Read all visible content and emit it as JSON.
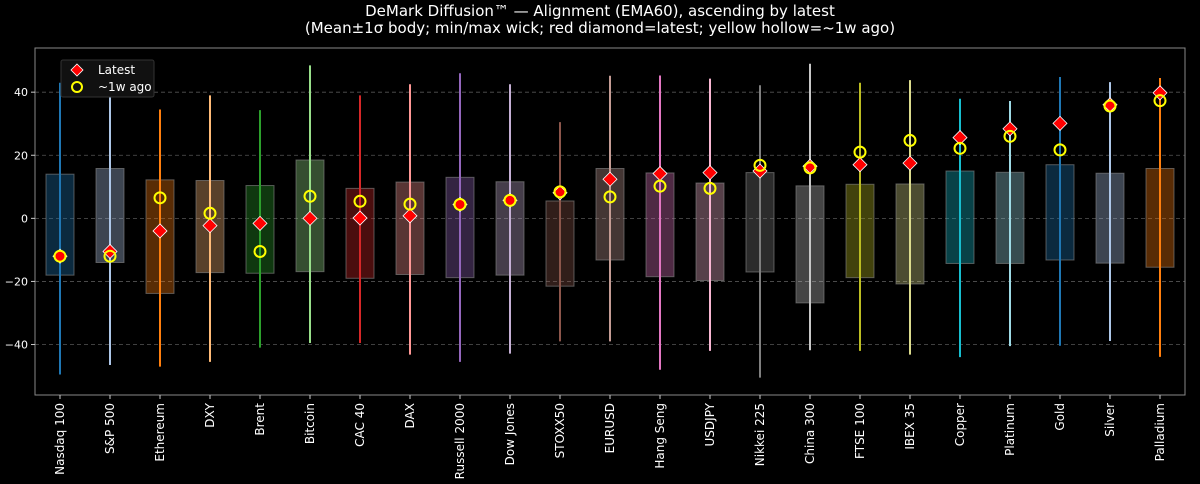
{
  "chart_data": {
    "type": "box-range",
    "title": "DeMark Diffusion™ — Alignment (EMA60), ascending by latest",
    "subtitle": "(Mean±1σ body; min/max wick; red diamond=latest; yellow hollow=~1w ago)",
    "xlabel": "",
    "ylabel": "",
    "ylim": [
      -56,
      54
    ],
    "yticks": [
      -40,
      -20,
      0,
      20,
      40
    ],
    "grid": true,
    "legend": {
      "placement": "top-left",
      "entries": [
        "Latest",
        "~1w ago"
      ]
    },
    "marker_colors": {
      "latest": "#ff0000",
      "week_ago": "#ffff00"
    },
    "categories": [
      "Nasdaq 100",
      "S&P 500",
      "Ethereum",
      "DXY",
      "Brent",
      "Bitcoin",
      "CAC 40",
      "DAX",
      "Russell 2000",
      "Dow Jones",
      "STOXX50",
      "EURUSD",
      "Hang Seng",
      "USDJPY",
      "Nikkei 225",
      "China 300",
      "FTSE 100",
      "IBEX 35",
      "Copper",
      "Platinum",
      "Gold",
      "Silver",
      "Palladium"
    ],
    "colors": [
      "#1f77b4",
      "#aec7e8",
      "#ff7f0e",
      "#ffbb78",
      "#2ca02c",
      "#98df8a",
      "#d62728",
      "#ff9896",
      "#9467bd",
      "#c5b0d5",
      "#8c564b",
      "#c49c94",
      "#e377c2",
      "#f7b6d2",
      "#7f7f7f",
      "#c7c7c7",
      "#bcbd22",
      "#dbdb8d",
      "#17becf",
      "#9edae5",
      "#1f77b4",
      "#aec7e8",
      "#ff7f0e"
    ],
    "body_high": [
      14,
      15.8,
      12.2,
      12,
      10.4,
      18.5,
      9.5,
      11.5,
      13,
      11.6,
      5.5,
      15.8,
      14.4,
      11.2,
      14.5,
      10.3,
      10.8,
      10.9,
      15,
      14.6,
      17,
      14.3,
      15.8
    ],
    "body_low": [
      -18,
      -14,
      -23.8,
      -17.2,
      -17.4,
      -16.9,
      -19,
      -17.8,
      -18.8,
      -18,
      -21.5,
      -13.2,
      -18.5,
      -19.7,
      -17,
      -26.8,
      -18.8,
      -20.8,
      -14.3,
      -14.3,
      -13.2,
      -14.2,
      -15.5
    ],
    "max": [
      43,
      46,
      34.5,
      39,
      34.3,
      48.5,
      39,
      42.5,
      46,
      42.5,
      30.5,
      45.2,
      45.3,
      44.3,
      42.2,
      49,
      43,
      43.8,
      37.9,
      37.2,
      44.8,
      43.2,
      44.5
    ],
    "min": [
      -49.5,
      -46.5,
      -47,
      -45.5,
      -41,
      -39.5,
      -39.5,
      -43.2,
      -45.5,
      -42.9,
      -39,
      -39,
      -48,
      -42,
      -50.5,
      -41.8,
      -42,
      -43.2,
      -44,
      -40.5,
      -40.4,
      -38.9,
      -43.9
    ],
    "latest": [
      -12,
      -10.5,
      -4,
      -2.3,
      -1.6,
      0,
      0.1,
      0.8,
      4.4,
      5.7,
      8.1,
      12.4,
      14.2,
      14.5,
      15,
      16.5,
      17,
      17.5,
      25.6,
      28.4,
      30.1,
      36,
      39.8
    ],
    "week_ago": [
      -12,
      -12,
      6.5,
      1.6,
      -10.5,
      7,
      5.4,
      4.5,
      4.4,
      5.7,
      8.4,
      6.8,
      10.2,
      9.5,
      16.8,
      16,
      21,
      24.7,
      22.2,
      26,
      21.7,
      35.6,
      37.3
    ]
  }
}
